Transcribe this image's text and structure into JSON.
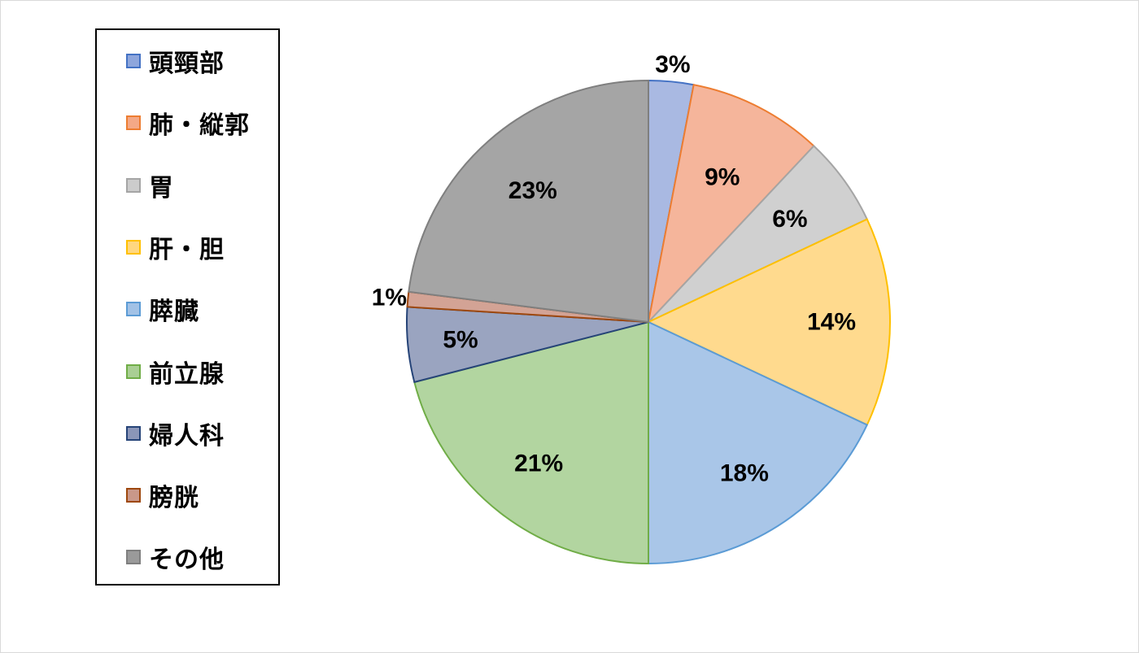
{
  "chart_data": {
    "type": "pie",
    "title": "",
    "legend_position": "left",
    "slices": [
      {
        "label": "頭頸部",
        "value": 3,
        "display": "3%",
        "fill": "#a9b9e2",
        "stroke": "#4472c4",
        "swatch": "#8ea6dc"
      },
      {
        "label": "肺・縦郭",
        "value": 9,
        "display": "9%",
        "fill": "#f5b59b",
        "stroke": "#ed7d31",
        "swatch": "#f4a886"
      },
      {
        "label": "胃",
        "value": 6,
        "display": "6%",
        "fill": "#d0d0d0",
        "stroke": "#a5a5a5",
        "swatch": "#cccccc"
      },
      {
        "label": "肝・胆",
        "value": 14,
        "display": "14%",
        "fill": "#ffda8e",
        "stroke": "#ffc000",
        "swatch": "#ffd780"
      },
      {
        "label": "膵臓",
        "value": 18,
        "display": "18%",
        "fill": "#a9c6e8",
        "stroke": "#5b9bd5",
        "swatch": "#a2c2e6"
      },
      {
        "label": "前立腺",
        "value": 21,
        "display": "21%",
        "fill": "#b2d5a0",
        "stroke": "#70ad47",
        "swatch": "#a9cf94"
      },
      {
        "label": "婦人科",
        "value": 5,
        "display": "5%",
        "fill": "#9aa4c0",
        "stroke": "#264478",
        "swatch": "#8b96b8"
      },
      {
        "label": "膀胱",
        "value": 1,
        "display": "1%",
        "fill": "#d3a395",
        "stroke": "#9e480e",
        "swatch": "#c9988a"
      },
      {
        "label": "その他",
        "value": 23,
        "display": "23%",
        "fill": "#a5a5a5",
        "stroke": "#7f7f7f",
        "swatch": "#9a9a9a"
      }
    ]
  }
}
